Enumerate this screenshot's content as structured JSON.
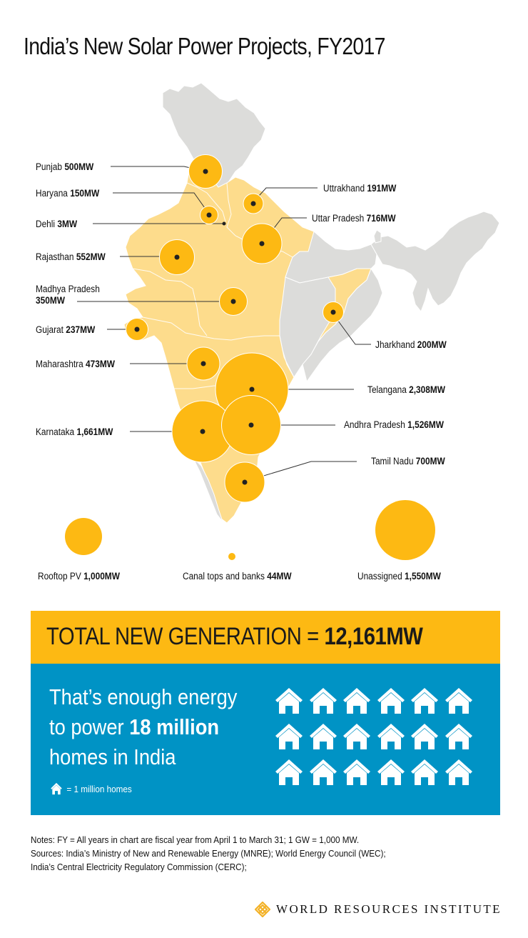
{
  "title": "India’s New Solar Power Projects, FY2017",
  "chart_data": {
    "type": "bubble-map",
    "title": "India’s New Solar Power Projects, FY2017",
    "unit": "MW",
    "states": [
      {
        "name": "Punjab",
        "value": 500,
        "label": "500MW"
      },
      {
        "name": "Haryana",
        "value": 150,
        "label": "150MW"
      },
      {
        "name": "Dehli",
        "value": 3,
        "label": "3MW"
      },
      {
        "name": "Rajasthan",
        "value": 552,
        "label": "552MW"
      },
      {
        "name": "Madhya Pradesh",
        "value": 350,
        "label": "350MW"
      },
      {
        "name": "Gujarat",
        "value": 237,
        "label": "237MW"
      },
      {
        "name": "Maharashtra",
        "value": 473,
        "label": "473MW"
      },
      {
        "name": "Karnataka",
        "value": 1661,
        "label": "1,661MW"
      },
      {
        "name": "Uttrakhand",
        "value": 191,
        "label": "191MW"
      },
      {
        "name": "Uttar Pradesh",
        "value": 716,
        "label": "716MW"
      },
      {
        "name": "Jharkhand",
        "value": 200,
        "label": "200MW"
      },
      {
        "name": "Telangana",
        "value": 2308,
        "label": "2,308MW"
      },
      {
        "name": "Andhra Pradesh",
        "value": 1526,
        "label": "1,526MW"
      },
      {
        "name": "Tamil Nadu",
        "value": 700,
        "label": "700MW"
      }
    ],
    "other": [
      {
        "name": "Rooftop PV",
        "value": 1000,
        "label": "1,000MW"
      },
      {
        "name": "Canal tops and banks",
        "value": 44,
        "label": "44MW"
      },
      {
        "name": "Unassigned",
        "value": 1550,
        "label": "1,550MW"
      }
    ],
    "total": {
      "value": 12161,
      "label": "12,161MW"
    },
    "colors": {
      "bubble": "#FDB913",
      "highlight_state": "#FDDC8C",
      "other_state": "#DCDCDA"
    }
  },
  "map_labels": {
    "punjab": {
      "name": "Punjab",
      "value": "500MW"
    },
    "haryana": {
      "name": "Haryana",
      "value": "150MW"
    },
    "dehli": {
      "name": "Dehli",
      "value": "3MW"
    },
    "rajasthan": {
      "name": "Rajasthan",
      "value": "552MW"
    },
    "madhya": {
      "name": "Madhya Pradesh",
      "value": "350MW"
    },
    "gujarat": {
      "name": "Gujarat",
      "value": "237MW"
    },
    "maharashtra": {
      "name": "Maharashtra",
      "value": "473MW"
    },
    "karnataka": {
      "name": "Karnataka",
      "value": "1,661MW"
    },
    "uttrakhand": {
      "name": "Uttrakhand",
      "value": "191MW"
    },
    "uttar": {
      "name": "Uttar Pradesh",
      "value": "716MW"
    },
    "jharkhand": {
      "name": "Jharkhand",
      "value": "200MW"
    },
    "telangana": {
      "name": "Telangana",
      "value": "2,308MW"
    },
    "andhra": {
      "name": "Andhra Pradesh",
      "value": "1,526MW"
    },
    "tamil": {
      "name": "Tamil Nadu",
      "value": "700MW"
    },
    "rooftop": {
      "name": "Rooftop PV",
      "value": "1,000MW"
    },
    "canal": {
      "name": "Canal tops and banks",
      "value": "44MW"
    },
    "unassigned": {
      "name": "Unassigned",
      "value": "1,550MW"
    }
  },
  "total_box": {
    "prefix": "TOTAL NEW GENERATION = ",
    "value": "12,161MW",
    "bg": "#FDB913"
  },
  "homes_box": {
    "line1": "That’s enough energy",
    "line2_prefix": "to power ",
    "line2_bold": "18 million",
    "line3": "homes in India",
    "legend": "= 1 million homes",
    "home_count": 18,
    "bg": "#0093C5"
  },
  "notes": {
    "line1": "Notes: FY = All years in chart are fiscal year from April 1 to March 31; 1 GW = 1,000 MW.",
    "line2": "Sources: India’s Ministry of New and Renewable Energy (MNRE); World Energy Council (WEC);",
    "line3": "India’s Central Electricity Regulatory Commission (CERC);"
  },
  "logo": {
    "text": "WORLD RESOURCES INSTITUTE",
    "color": "#F3B228"
  }
}
